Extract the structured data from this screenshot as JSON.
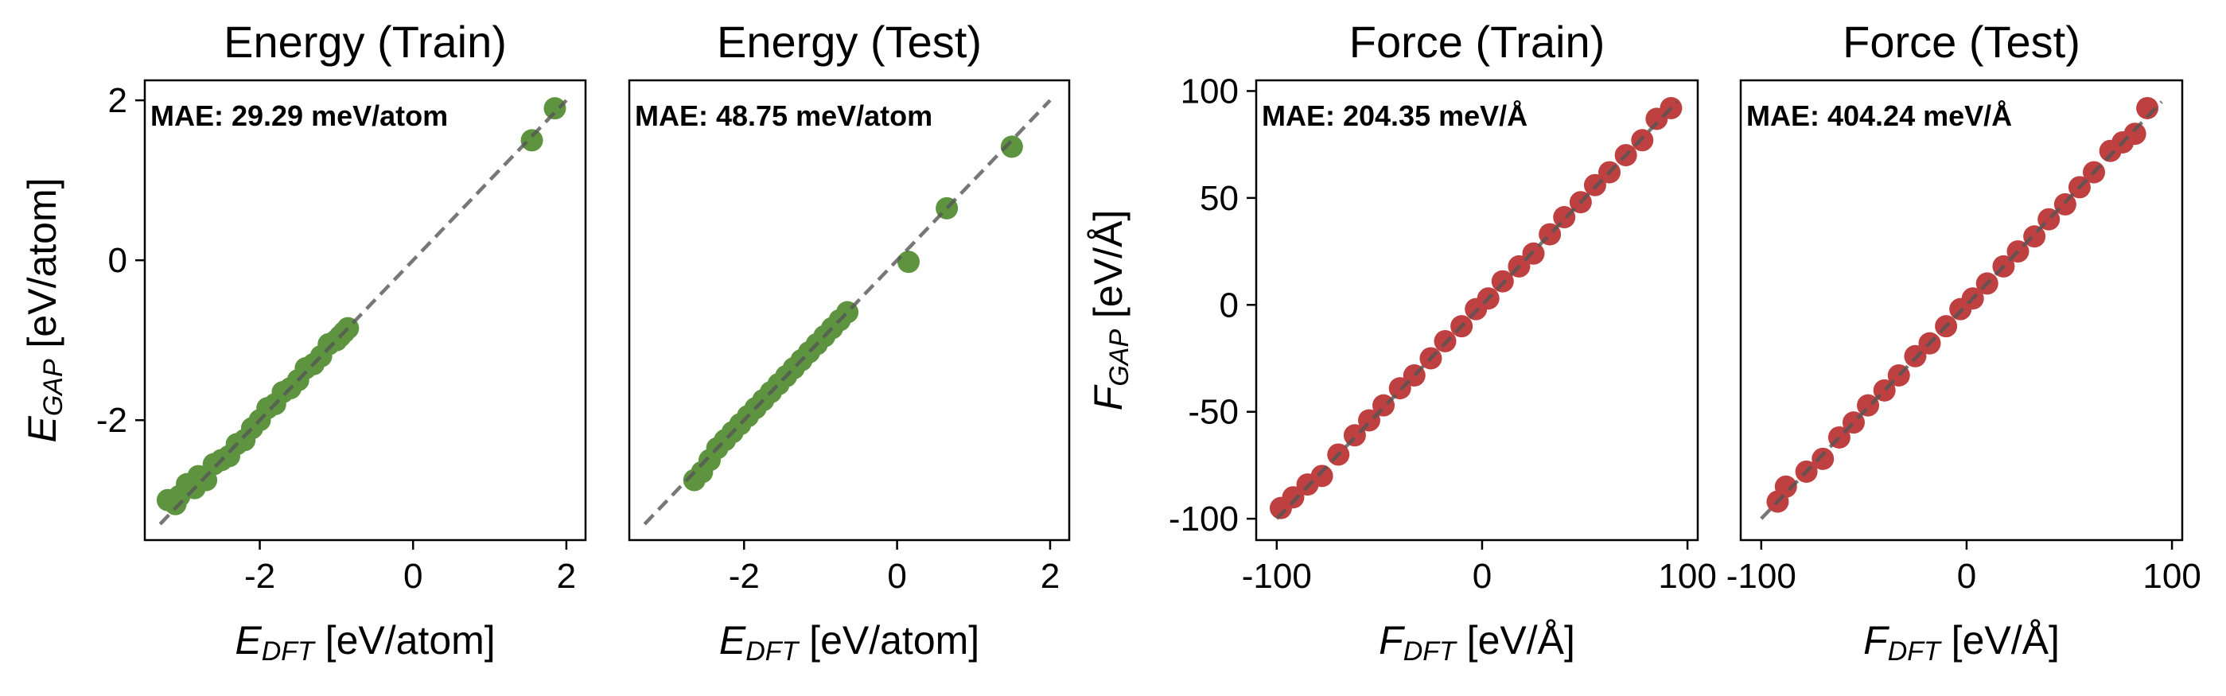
{
  "chart_data": [
    {
      "type": "scatter",
      "title": "Energy (Train)",
      "xlabel": "E_DFT [eV/atom]",
      "ylabel": "E_GAP [eV/atom]",
      "xlim": [
        -3.5,
        2.25
      ],
      "ylim": [
        -3.5,
        2.25
      ],
      "xticks": [
        -2,
        0,
        2
      ],
      "yticks": [
        -2,
        0,
        2
      ],
      "xtick_labels": [
        "-2",
        "0",
        "2"
      ],
      "ytick_labels": [
        "-2",
        "0",
        "2"
      ],
      "annotation": "MAE: 29.29 meV/atom",
      "color": "#5e9440",
      "reference_line": [
        [
          -3.3,
          -3.3
        ],
        [
          2.0,
          2.0
        ]
      ],
      "series": [
        {
          "x": [
            -3.2,
            -3.1,
            -3.05,
            -2.95,
            -2.85,
            -2.8,
            -2.7,
            -2.6,
            -2.5,
            -2.4,
            -2.3,
            -2.2,
            -2.1,
            -2.0,
            -1.9,
            -1.8,
            -1.7,
            -1.6,
            -1.5,
            -1.4,
            -1.3,
            -1.2,
            -1.1,
            -1.0,
            -0.95,
            -0.9,
            -0.85,
            1.55,
            1.85
          ],
          "y": [
            -3.0,
            -3.05,
            -2.95,
            -2.8,
            -2.85,
            -2.7,
            -2.75,
            -2.55,
            -2.5,
            -2.45,
            -2.3,
            -2.25,
            -2.1,
            -2.0,
            -1.85,
            -1.8,
            -1.65,
            -1.6,
            -1.5,
            -1.35,
            -1.3,
            -1.2,
            -1.05,
            -1.0,
            -0.95,
            -0.9,
            -0.85,
            1.5,
            1.9
          ]
        }
      ]
    },
    {
      "type": "scatter",
      "title": "Energy (Test)",
      "xlabel": "E_DFT [eV/atom]",
      "ylabel": "",
      "xlim": [
        -3.5,
        2.25
      ],
      "ylim": [
        -3.5,
        2.25
      ],
      "xticks": [
        -2,
        0,
        2
      ],
      "xtick_labels": [
        "-2",
        "0",
        "2"
      ],
      "yticks": [],
      "ytick_labels": [],
      "annotation": "MAE: 48.75 meV/atom",
      "color": "#5e9440",
      "reference_line": [
        [
          -3.3,
          -3.3
        ],
        [
          2.0,
          2.0
        ]
      ],
      "series": [
        {
          "x": [
            -2.65,
            -2.55,
            -2.45,
            -2.35,
            -2.25,
            -2.15,
            -2.05,
            -1.95,
            -1.85,
            -1.75,
            -1.65,
            -1.55,
            -1.45,
            -1.35,
            -1.25,
            -1.15,
            -1.05,
            -0.95,
            -0.85,
            -0.75,
            -0.65,
            0.15,
            0.65,
            1.5
          ],
          "y": [
            -2.75,
            -2.65,
            -2.5,
            -2.35,
            -2.25,
            -2.15,
            -2.05,
            -1.95,
            -1.85,
            -1.75,
            -1.65,
            -1.55,
            -1.45,
            -1.35,
            -1.25,
            -1.15,
            -1.05,
            -0.95,
            -0.85,
            -0.75,
            -0.65,
            -0.02,
            0.65,
            1.42
          ]
        }
      ]
    },
    {
      "type": "scatter",
      "title": "Force (Train)",
      "xlabel": "F_DFT [eV/Å]",
      "ylabel": "F_GAP [eV/Å]",
      "xlim": [
        -110,
        105
      ],
      "ylim": [
        -110,
        105
      ],
      "xticks": [
        -100,
        0,
        100
      ],
      "yticks": [
        -100,
        -50,
        0,
        50,
        100
      ],
      "xtick_labels": [
        "-100",
        "0",
        "100"
      ],
      "ytick_labels": [
        "-100",
        "-50",
        "0",
        "50",
        "100"
      ],
      "annotation": "MAE: 204.35 meV/Å",
      "color": "#bf4040",
      "reference_line": [
        [
          -100,
          -100
        ],
        [
          95,
          95
        ]
      ],
      "series": [
        {
          "x": [
            -98,
            -92,
            -85,
            -78,
            -70,
            -62,
            -55,
            -48,
            -40,
            -33,
            -25,
            -18,
            -10,
            -3,
            3,
            10,
            18,
            25,
            33,
            40,
            48,
            55,
            62,
            70,
            78,
            85,
            92
          ],
          "y": [
            -95,
            -90,
            -84,
            -80,
            -70,
            -61,
            -54,
            -47,
            -39,
            -33,
            -25,
            -17,
            -10,
            -2,
            3,
            11,
            18,
            24,
            33,
            41,
            48,
            56,
            62,
            70,
            77,
            87,
            92
          ]
        }
      ]
    },
    {
      "type": "scatter",
      "title": "Force (Test)",
      "xlabel": "F_DFT [eV/Å]",
      "ylabel": "",
      "xlim": [
        -110,
        105
      ],
      "ylim": [
        -110,
        105
      ],
      "xticks": [
        -100,
        0,
        100
      ],
      "xtick_labels": [
        "-100",
        "0",
        "100"
      ],
      "yticks": [],
      "ytick_labels": [],
      "annotation": "MAE: 404.24 meV/Å",
      "color": "#bf4040",
      "reference_line": [
        [
          -100,
          -100
        ],
        [
          95,
          95
        ]
      ],
      "series": [
        {
          "x": [
            -92,
            -88,
            -78,
            -70,
            -62,
            -55,
            -48,
            -40,
            -33,
            -25,
            -18,
            -10,
            -3,
            3,
            10,
            18,
            25,
            33,
            40,
            48,
            55,
            62,
            70,
            76,
            82,
            88
          ],
          "y": [
            -92,
            -85,
            -78,
            -72,
            -62,
            -55,
            -47,
            -40,
            -33,
            -24,
            -18,
            -10,
            -2,
            3,
            10,
            18,
            25,
            32,
            40,
            47,
            55,
            62,
            72,
            76,
            80,
            92
          ]
        }
      ]
    }
  ]
}
